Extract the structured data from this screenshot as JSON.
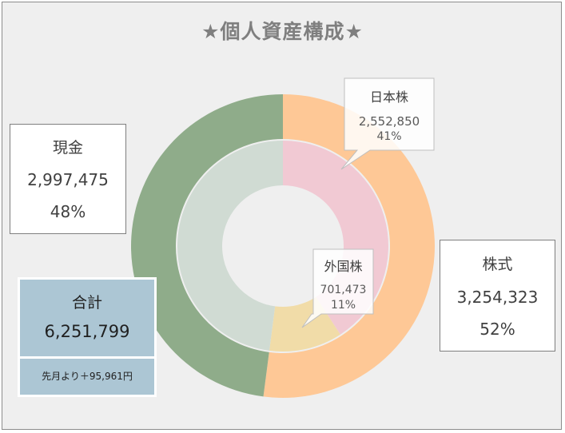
{
  "title": "★個人資産構成★",
  "colors": {
    "background": "#efefef",
    "cash_outer": "#8fac8a",
    "cash_inner": "#d0dbd3",
    "stock_outer": "#fec896",
    "jp_stock_inner": "#f1c9d3",
    "foreign_stock_inner": "#f1dca8",
    "total_box": "#acc6d4"
  },
  "cash": {
    "label": "現金",
    "value": "2,997,475",
    "percent": "48%"
  },
  "stocks": {
    "label": "株式",
    "value": "3,254,323",
    "percent": "52%"
  },
  "japan_stock": {
    "label": "日本株",
    "value": "2,552,850",
    "percent": "41%"
  },
  "foreign_stock": {
    "label": "外国株",
    "value": "701,473",
    "percent": "11%"
  },
  "total": {
    "label": "合計",
    "value": "6,251,799",
    "change": "先月より＋95,961円"
  },
  "chart_data": [
    {
      "type": "donut",
      "ring": "outer",
      "categories": [
        "株式",
        "現金"
      ],
      "values": [
        3254323,
        2997475
      ],
      "percent_labels": [
        "52%",
        "48%"
      ]
    },
    {
      "type": "donut",
      "ring": "inner",
      "categories": [
        "日本株",
        "外国株",
        "現金"
      ],
      "values": [
        2552850,
        701473,
        2997475
      ],
      "percent_labels": [
        "41%",
        "11%",
        ""
      ]
    }
  ]
}
